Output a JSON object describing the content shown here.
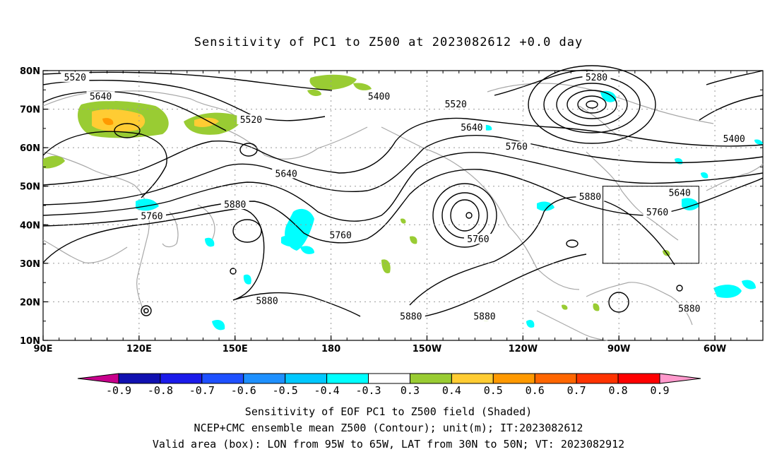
{
  "title": "Sensitivity of PC1 to Z500 at 2023082612 +0.0 day",
  "map": {
    "lat_ticks": [
      "80N",
      "70N",
      "60N",
      "50N",
      "40N",
      "30N",
      "20N",
      "10N"
    ],
    "lon_ticks": [
      "90E",
      "120E",
      "150E",
      "180",
      "150W",
      "120W",
      "90W",
      "60W"
    ],
    "lon_range": [
      90,
      315
    ],
    "lat_range": [
      10,
      80
    ],
    "valid_box": {
      "lon": [
        265,
        295
      ],
      "lat": [
        30,
        50
      ]
    },
    "contour_labels": [
      {
        "text": "5520",
        "lon": 100,
        "lat": 78
      },
      {
        "text": "5640",
        "lon": 108,
        "lat": 73
      },
      {
        "text": "5400",
        "lon": 195,
        "lat": 73
      },
      {
        "text": "5520",
        "lon": 155,
        "lat": 67
      },
      {
        "text": "5640",
        "lon": 166,
        "lat": 53
      },
      {
        "text": "5880",
        "lon": 150,
        "lat": 45
      },
      {
        "text": "5760",
        "lon": 124,
        "lat": 42
      },
      {
        "text": "5760",
        "lon": 183,
        "lat": 37
      },
      {
        "text": "5880",
        "lon": 160,
        "lat": 20
      },
      {
        "text": "5880",
        "lon": 205,
        "lat": 16
      },
      {
        "text": "5880",
        "lon": 228,
        "lat": 16
      },
      {
        "text": "5520",
        "lon": 219,
        "lat": 71
      },
      {
        "text": "5640",
        "lon": 224,
        "lat": 65
      },
      {
        "text": "5760",
        "lon": 238,
        "lat": 60
      },
      {
        "text": "5760",
        "lon": 226,
        "lat": 36
      },
      {
        "text": "5280",
        "lon": 263,
        "lat": 78
      },
      {
        "text": "5400",
        "lon": 306,
        "lat": 62
      },
      {
        "text": "5880",
        "lon": 261,
        "lat": 47
      },
      {
        "text": "5640",
        "lon": 289,
        "lat": 48
      },
      {
        "text": "5760",
        "lon": 282,
        "lat": 43
      },
      {
        "text": "5880",
        "lon": 292,
        "lat": 18
      }
    ]
  },
  "colorbar": {
    "colors": [
      "#c8008c",
      "#1010b0",
      "#1b1bea",
      "#1e50ff",
      "#1e90ff",
      "#00c8ff",
      "#00ffff",
      "#ffffff",
      "#99cc33",
      "#ffcc33",
      "#ff9900",
      "#ff6600",
      "#ff3300",
      "#ff0000",
      "#ff99cc"
    ],
    "labels": [
      "-0.9",
      "-0.8",
      "-0.7",
      "-0.6",
      "-0.5",
      "-0.4",
      "-0.3",
      "0.3",
      "0.4",
      "0.5",
      "0.6",
      "0.7",
      "0.8",
      "0.9"
    ]
  },
  "footer": {
    "line1": "Sensitivity of EOF PC1 to Z500 field (Shaded)",
    "line2": "NCEP+CMC ensemble mean Z500 (Contour); unit(m); IT:2023082612",
    "line3": "Valid area (box): LON from 95W to 65W, LAT from 30N to 50N; VT: 2023082912"
  }
}
